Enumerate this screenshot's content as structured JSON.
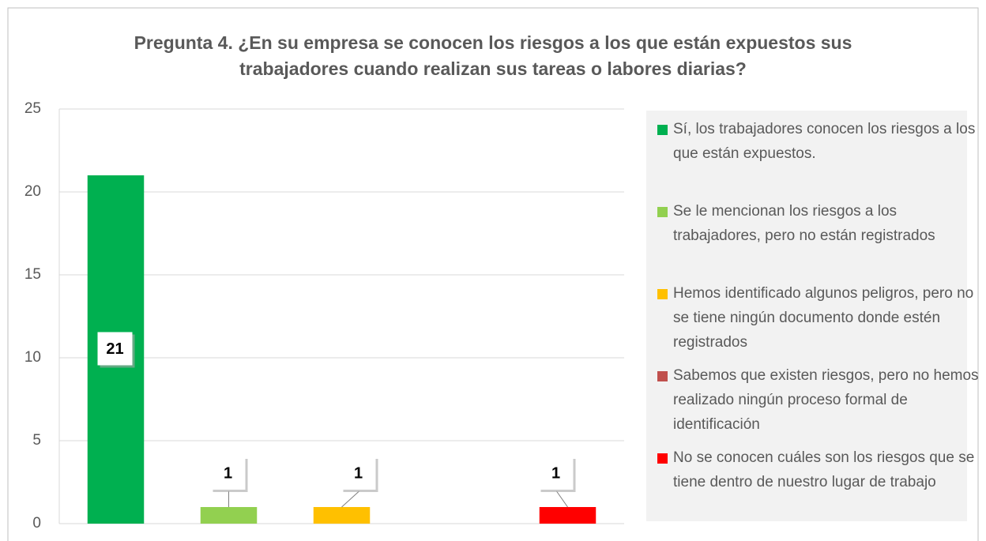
{
  "chart_data": {
    "type": "bar",
    "title": "Pregunta 4. ¿En su empresa se conocen los riesgos a los que están expuestos sus trabajadores cuando realizan sus tareas o labores diarias?",
    "categories": [
      "Sí, los trabajadores conocen los riesgos a los que están expuestos.",
      "Se le mencionan los riesgos a los trabajadores, pero no están registrados",
      "Hemos identificado algunos peligros, pero no se tiene ningún documento donde estén registrados",
      "Sabemos que existen riesgos, pero no hemos realizado ningún proceso formal de identificación",
      "No se conocen cuáles son los riesgos que se tiene dentro de nuestro lugar de trabajo"
    ],
    "values": [
      21,
      1,
      1,
      0,
      1
    ],
    "value_labels": [
      "21",
      "1",
      "1",
      null,
      "1"
    ],
    "colors": [
      "#00b050",
      "#92d050",
      "#ffc000",
      "#c0504d",
      "#ff0000"
    ],
    "ylim": [
      0,
      25
    ],
    "yticks": [
      0,
      5,
      10,
      15,
      20,
      25
    ],
    "grid": true,
    "legend": "right"
  }
}
